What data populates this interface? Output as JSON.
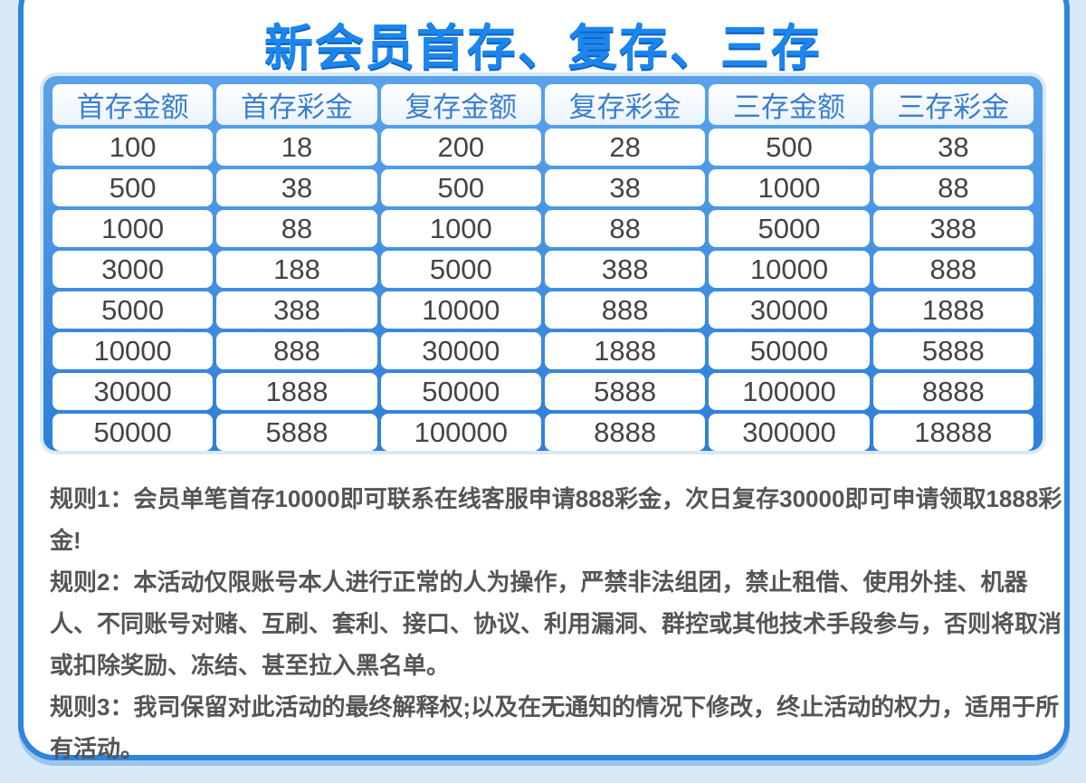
{
  "title": "新会员首存、复存、三存",
  "table": {
    "headers": [
      "首存金额",
      "首存彩金",
      "复存金额",
      "复存彩金",
      "三存金额",
      "三存彩金"
    ],
    "rows": [
      [
        "100",
        "18",
        "200",
        "28",
        "500",
        "38"
      ],
      [
        "500",
        "38",
        "500",
        "38",
        "1000",
        "88"
      ],
      [
        "1000",
        "88",
        "1000",
        "88",
        "5000",
        "388"
      ],
      [
        "3000",
        "188",
        "5000",
        "388",
        "10000",
        "888"
      ],
      [
        "5000",
        "388",
        "10000",
        "888",
        "30000",
        "1888"
      ],
      [
        "10000",
        "888",
        "30000",
        "1888",
        "50000",
        "5888"
      ],
      [
        "30000",
        "1888",
        "50000",
        "5888",
        "100000",
        "8888"
      ],
      [
        "50000",
        "5888",
        "100000",
        "8888",
        "300000",
        "18888"
      ]
    ]
  },
  "rules": [
    "规则1：会员单笔首存10000即可联系在线客服申请888彩金，次日复存30000即可申请领取1888彩金!",
    "规则2：本活动仅限账号本人进行正常的人为操作，严禁非法组团，禁止租借、使用外挂、机器人、不同账号对赌、互刷、套利、接口、协议、利用漏洞、群控或其他技术手段参与，否则将取消或扣除奖励、冻结、甚至拉入黑名单。",
    "规则3：我司保留对此活动的最终解释权;以及在无通知的情况下修改，终止活动的权力，适用于所有活动。"
  ],
  "colors": {
    "accent": "#2f84dc",
    "title": "#1a86ee",
    "text": "#555555"
  }
}
